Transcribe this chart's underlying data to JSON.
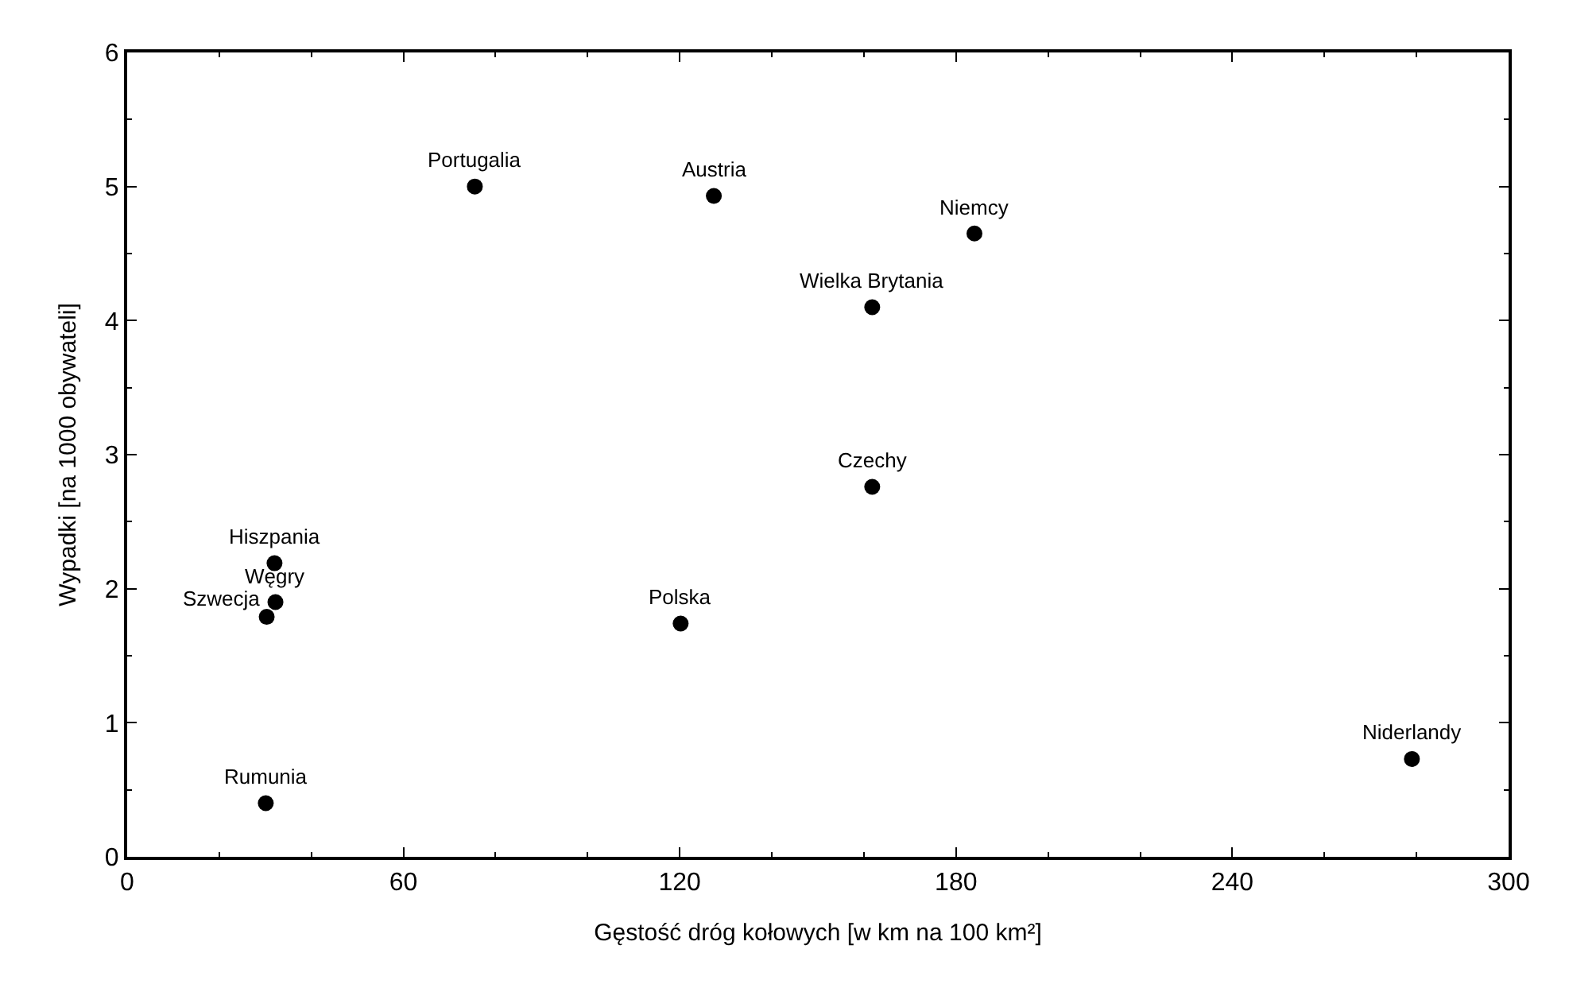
{
  "chart_data": {
    "type": "scatter",
    "xlabel": "Gęstość dróg kołowych [w km na 100 km²]",
    "ylabel": "Wypadki [na 1000 obywateli]",
    "x": [
      75.5,
      127.4,
      184,
      161.8,
      161.8,
      32,
      32.2,
      30.3,
      30.1,
      120.2,
      279
    ],
    "values": [
      5.0,
      4.93,
      4.65,
      4.1,
      2.76,
      2.19,
      1.9,
      1.79,
      0.4,
      1.74,
      0.73
    ],
    "color": "#000000",
    "marker": "circle",
    "xlim": [
      0,
      300
    ],
    "xticks": [
      0,
      60,
      120,
      180,
      240,
      300
    ],
    "ylim": [
      0,
      6
    ],
    "yticks": [
      0,
      1,
      2,
      3,
      4,
      5,
      6
    ],
    "grid": false,
    "annotations": [
      {
        "text": "Portugalia",
        "x": 75.5,
        "y": 5.0
      },
      {
        "text": "Austria",
        "x": 127.4,
        "y": 4.93
      },
      {
        "text": "Niemcy",
        "x": 184,
        "y": 4.65
      },
      {
        "text": "Wielka Brytania",
        "x": 161.8,
        "y": 4.1
      },
      {
        "text": "Czechy",
        "x": 161.8,
        "y": 2.76
      },
      {
        "text": "Hiszpania",
        "x": 32,
        "y": 2.19
      },
      {
        "text": "Węgry",
        "x": 32.2,
        "y": 1.9
      },
      {
        "text": "Szwecja",
        "x": 30.3,
        "y": 1.79
      },
      {
        "text": "Rumunia",
        "x": 30.1,
        "y": 0.4
      },
      {
        "text": "Polska",
        "x": 120.2,
        "y": 1.74
      },
      {
        "text": "Niderlandy",
        "x": 279,
        "y": 0.73
      }
    ]
  }
}
